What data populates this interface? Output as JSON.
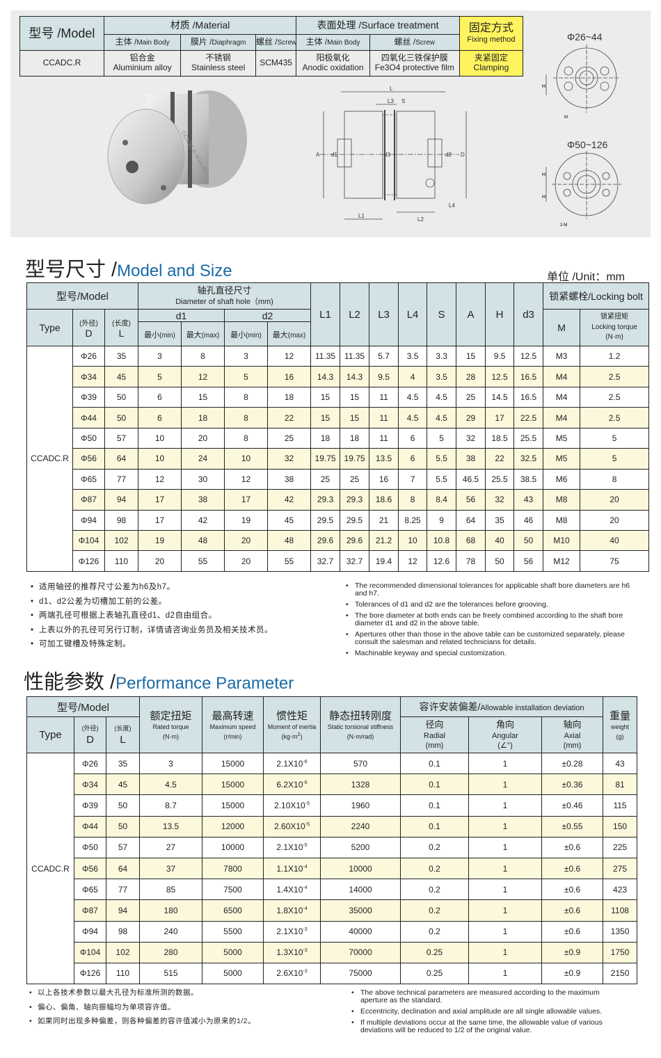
{
  "material_table": {
    "model_header": "型号 /Model",
    "material_header": "材质 /Material",
    "surface_header": "表面处理 /Surface treatment",
    "fixing_header_cn": "固定方式",
    "fixing_header_en": "Fixing method",
    "sub": [
      {
        "cn": "主体 /",
        "en": "Main Body"
      },
      {
        "cn": "膜片 /",
        "en": "Diaphragm"
      },
      {
        "cn": "螺丝 /",
        "en": "Screw"
      },
      {
        "cn": "主体 /",
        "en": "Main Body"
      },
      {
        "cn": "螺丝 /",
        "en": "Screw"
      }
    ],
    "row": {
      "model": "CCADC.R",
      "cells": [
        {
          "cn": "铝合金",
          "en": "Aluminium alloy"
        },
        {
          "cn": "不锈钢",
          "en": "Stainless steel"
        },
        {
          "cn": "",
          "en": "SCM435"
        },
        {
          "cn": "阳极氧化",
          "en": "Anodic oxidation"
        },
        {
          "cn": "四氧化三铁保护膜",
          "en": "Fe3O4 protective film"
        },
        {
          "cn": "夹紧固定",
          "en": "Clamping"
        }
      ]
    }
  },
  "product_image": {
    "engraving": "CCADC.R-Φ34x45"
  },
  "drawings": {
    "labels": {
      "L": "L",
      "L3": "L3",
      "S": "S",
      "A": "A",
      "d1": "d1",
      "d3": "d3",
      "d2": "d2",
      "D": "D",
      "L1": "L1",
      "L2": "L2",
      "L4": "L4",
      "H": "H",
      "M": "M",
      "M2": "2-M"
    },
    "small_range": "Φ26~44",
    "large_range": "Φ50~126"
  },
  "size_section": {
    "title_cn": "型号尺寸 /",
    "title_en": "Model and Size",
    "unit": "单位 /Unit：mm",
    "headers": {
      "model": "型号/Model",
      "shaft_cn": "轴孔直径尺寸",
      "shaft_en": "Diameter of shaft hole（mm)",
      "d1": "d1",
      "d2": "d2",
      "type": "Type",
      "D_cn": "(外径)",
      "D": "D",
      "L_cn": "(长度)",
      "L": "L",
      "min_cn": "最小",
      "min_en": "(min)",
      "max_cn": "最大",
      "max_en": "(max)",
      "L1": "L1",
      "L2": "L2",
      "L3": "L3",
      "L4": "L4",
      "S": "S",
      "A": "A",
      "H": "H",
      "d3": "d3",
      "bolt": "锁紧螺栓/Locking bolt",
      "M": "M",
      "torque_cn": "锁紧扭矩",
      "torque_en": "Locking torque",
      "torque_unit": "(N·m)"
    },
    "type": "CCADC.R",
    "rows": [
      [
        "Φ26",
        "35",
        "3",
        "8",
        "3",
        "12",
        "11.35",
        "11.35",
        "5.7",
        "3.5",
        "3.3",
        "15",
        "9.5",
        "12.5",
        "M3",
        "1.2"
      ],
      [
        "Φ34",
        "45",
        "5",
        "12",
        "5",
        "16",
        "14.3",
        "14.3",
        "9.5",
        "4",
        "3.5",
        "28",
        "12.5",
        "16.5",
        "M4",
        "2.5"
      ],
      [
        "Φ39",
        "50",
        "6",
        "15",
        "8",
        "18",
        "15",
        "15",
        "11",
        "4.5",
        "4.5",
        "25",
        "14.5",
        "16.5",
        "M4",
        "2.5"
      ],
      [
        "Φ44",
        "50",
        "6",
        "18",
        "8",
        "22",
        "15",
        "15",
        "11",
        "4.5",
        "4.5",
        "29",
        "17",
        "22.5",
        "M4",
        "2.5"
      ],
      [
        "Φ50",
        "57",
        "10",
        "20",
        "8",
        "25",
        "18",
        "18",
        "11",
        "6",
        "5",
        "32",
        "18.5",
        "25.5",
        "M5",
        "5"
      ],
      [
        "Φ56",
        "64",
        "10",
        "24",
        "10",
        "32",
        "19.75",
        "19.75",
        "13.5",
        "6",
        "5.5",
        "38",
        "22",
        "32.5",
        "M5",
        "5"
      ],
      [
        "Φ65",
        "77",
        "12",
        "30",
        "12",
        "38",
        "25",
        "25",
        "16",
        "7",
        "5.5",
        "46.5",
        "25.5",
        "38.5",
        "M6",
        "8"
      ],
      [
        "Φ87",
        "94",
        "17",
        "38",
        "17",
        "42",
        "29.3",
        "29.3",
        "18.6",
        "8",
        "8.4",
        "56",
        "32",
        "43",
        "M8",
        "20"
      ],
      [
        "Φ94",
        "98",
        "17",
        "42",
        "19",
        "45",
        "29.5",
        "29.5",
        "21",
        "8.25",
        "9",
        "64",
        "35",
        "46",
        "M8",
        "20"
      ],
      [
        "Φ104",
        "102",
        "19",
        "48",
        "20",
        "48",
        "29.6",
        "29.6",
        "21.2",
        "10",
        "10.8",
        "68",
        "40",
        "50",
        "M10",
        "40"
      ],
      [
        "Φ126",
        "110",
        "20",
        "55",
        "20",
        "55",
        "32.7",
        "32.7",
        "19.4",
        "12",
        "12.6",
        "78",
        "50",
        "56",
        "M12",
        "75"
      ]
    ],
    "notes_cn": [
      "适用轴径的推荐尺寸公差为h6及h7。",
      "d1、d2公差为切槽加工前的公差。",
      "两端孔径可根据上表轴孔直径d1、d2自由组合。",
      "上表以外的孔径可另行订制，详情请咨询业务员及相关技术员。",
      "可加工键槽及特殊定制。"
    ],
    "notes_en": [
      "The recommended dimensional tolerances for applicable shaft bore diameters are h6 and h7.",
      "Tolerances of d1 and d2 are the tolerances before grooving.",
      "The bore diameter at both ends can be freely combined according to the shaft bore diameter d1 and d2 in the above table.",
      "Apertures other than those in the above table can be customized separately, please consult the salesman and related technicians for details.",
      "Machinable keyway and special customization."
    ]
  },
  "performance_section": {
    "title_cn": "性能参数 /",
    "title_en": "Performance Parameter",
    "headers": {
      "model": "型号/Model",
      "type": "Type",
      "D_cn": "(外径)",
      "D": "D",
      "L_cn": "(长度)",
      "L": "L",
      "torque_cn": "额定扭矩",
      "torque_en": "Rated torque",
      "torque_unit": "(N·m)",
      "speed_cn": "最高转速",
      "speed_en": "Maximum speed",
      "speed_unit": "(r/min)",
      "inertia_cn": "惯性矩",
      "inertia_en": "Moment of inertia",
      "inertia_unit": "(kg·m",
      "inertia_sup": "2",
      "inertia_close": ")",
      "stiff_cn": "静态扭转刚度",
      "stiff_en": "Static torsional stiffness",
      "stiff_unit": "(N·m/rad)",
      "dev_cn": "容许安装偏差/",
      "dev_en": "Allowable installation deviation",
      "radial_cn": "径向",
      "radial_en": "Radial",
      "radial_unit": "(mm)",
      "angular_cn": "角向",
      "angular_en": "Angular",
      "angular_unit": "(∠°)",
      "axial_cn": "轴向",
      "axial_en": "Axial",
      "axial_unit": "(mm)",
      "weight_cn": "重量",
      "weight_en": "weight",
      "weight_unit": "(g)"
    },
    "type": "CCADC.R",
    "rows": [
      {
        "D": "Φ26",
        "L": "35",
        "torque": "3",
        "speed": "15000",
        "inertia": "2.1X10",
        "exp": "-6",
        "stiff": "570",
        "radial": "0.1",
        "angular": "1",
        "axial": "±0.28",
        "weight": "43"
      },
      {
        "D": "Φ34",
        "L": "45",
        "torque": "4.5",
        "speed": "15000",
        "inertia": "6.2X10",
        "exp": "-6",
        "stiff": "1328",
        "radial": "0.1",
        "angular": "1",
        "axial": "±0.36",
        "weight": "81"
      },
      {
        "D": "Φ39",
        "L": "50",
        "torque": "8.7",
        "speed": "15000",
        "inertia": "2.10X10",
        "exp": "-5",
        "stiff": "1960",
        "radial": "0.1",
        "angular": "1",
        "axial": "±0.46",
        "weight": "115"
      },
      {
        "D": "Φ44",
        "L": "50",
        "torque": "13.5",
        "speed": "12000",
        "inertia": "2.60X10",
        "exp": "-5",
        "stiff": "2240",
        "radial": "0.1",
        "angular": "1",
        "axial": "±0.55",
        "weight": "150"
      },
      {
        "D": "Φ50",
        "L": "57",
        "torque": "27",
        "speed": "10000",
        "inertia": "2.1X10",
        "exp": "-5",
        "stiff": "5200",
        "radial": "0.2",
        "angular": "1",
        "axial": "±0.6",
        "weight": "225"
      },
      {
        "D": "Φ56",
        "L": "64",
        "torque": "37",
        "speed": "7800",
        "inertia": "1.1X10",
        "exp": "-4",
        "stiff": "10000",
        "radial": "0.2",
        "angular": "1",
        "axial": "±0.6",
        "weight": "275"
      },
      {
        "D": "Φ65",
        "L": "77",
        "torque": "85",
        "speed": "7500",
        "inertia": "1.4X10",
        "exp": "-4",
        "stiff": "14000",
        "radial": "0.2",
        "angular": "1",
        "axial": "±0.6",
        "weight": "423"
      },
      {
        "D": "Φ87",
        "L": "94",
        "torque": "180",
        "speed": "6500",
        "inertia": "1.8X10",
        "exp": "-4",
        "stiff": "35000",
        "radial": "0.2",
        "angular": "1",
        "axial": "±0.6",
        "weight": "1108"
      },
      {
        "D": "Φ94",
        "L": "98",
        "torque": "240",
        "speed": "5500",
        "inertia": "2.1X10",
        "exp": "-3",
        "stiff": "40000",
        "radial": "0.2",
        "angular": "1",
        "axial": "±0.6",
        "weight": "1350"
      },
      {
        "D": "Φ104",
        "L": "102",
        "torque": "280",
        "speed": "5000",
        "inertia": "1.3X10",
        "exp": "-3",
        "stiff": "70000",
        "radial": "0.25",
        "angular": "1",
        "axial": "±0.9",
        "weight": "1750"
      },
      {
        "D": "Φ126",
        "L": "110",
        "torque": "515",
        "speed": "5000",
        "inertia": "2.6X10",
        "exp": "-3",
        "stiff": "75000",
        "radial": "0.25",
        "angular": "1",
        "axial": "±0.9",
        "weight": "2150"
      }
    ],
    "notes_cn": [
      "以上各技术参数以最大孔径为标准所测的数据。",
      "偏心、偏角、轴向振幅均为单项容许值。",
      "如果同时出现多种偏差，则各种偏差的容许值减小为原来的1/2。"
    ],
    "notes_en": [
      "The above technical parameters are measured according to the maximum aperture as the standard.",
      "Eccentricity, declination and axial amplitude are all single allowable values.",
      "If multiple deviations occur at the same time, the allowable value of various deviations will be reduced to 1/2 of the original value."
    ]
  },
  "colors": {
    "header_bg": "#d3e2e5",
    "highlight": "#fff45f",
    "alt_row": "#fcf8dc",
    "title_blue": "#1b6aa5"
  }
}
